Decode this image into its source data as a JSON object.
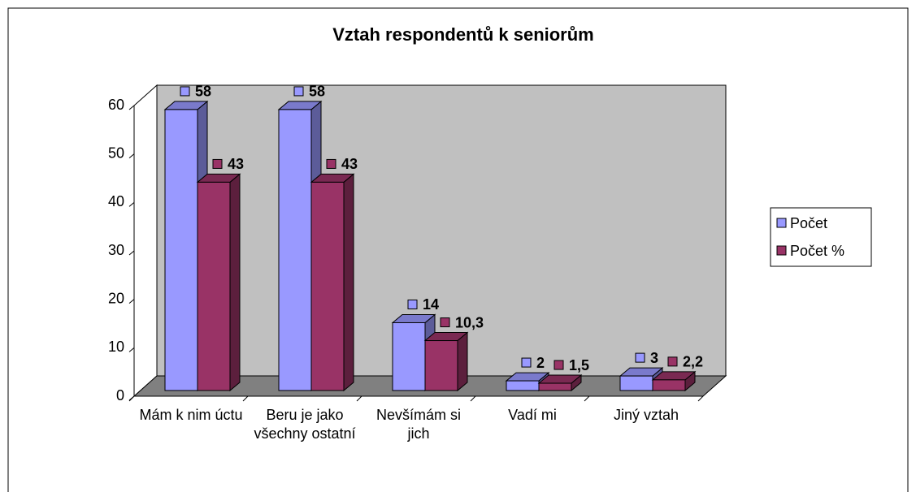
{
  "chart_data": {
    "type": "bar3d",
    "title": "Vztah respondentů k seniorům",
    "categories": [
      "Mám k nim úctu",
      "Beru je jako všechny ostatní",
      "Nevšímám si jich",
      "Vadí mi",
      "Jiný vztah"
    ],
    "series": [
      {
        "name": "Počet",
        "color": "#9999ff",
        "values": [
          58,
          58,
          14,
          2,
          3
        ]
      },
      {
        "name": "Počet %",
        "color": "#993366",
        "values": [
          43,
          43,
          10.3,
          1.5,
          2.2
        ],
        "value_labels": [
          "43",
          "43",
          "10,3",
          "1,5",
          "2,2"
        ]
      }
    ],
    "ylim": [
      0,
      60
    ],
    "yticks": [
      0,
      10,
      20,
      30,
      40,
      50,
      60
    ],
    "legend": "right"
  }
}
